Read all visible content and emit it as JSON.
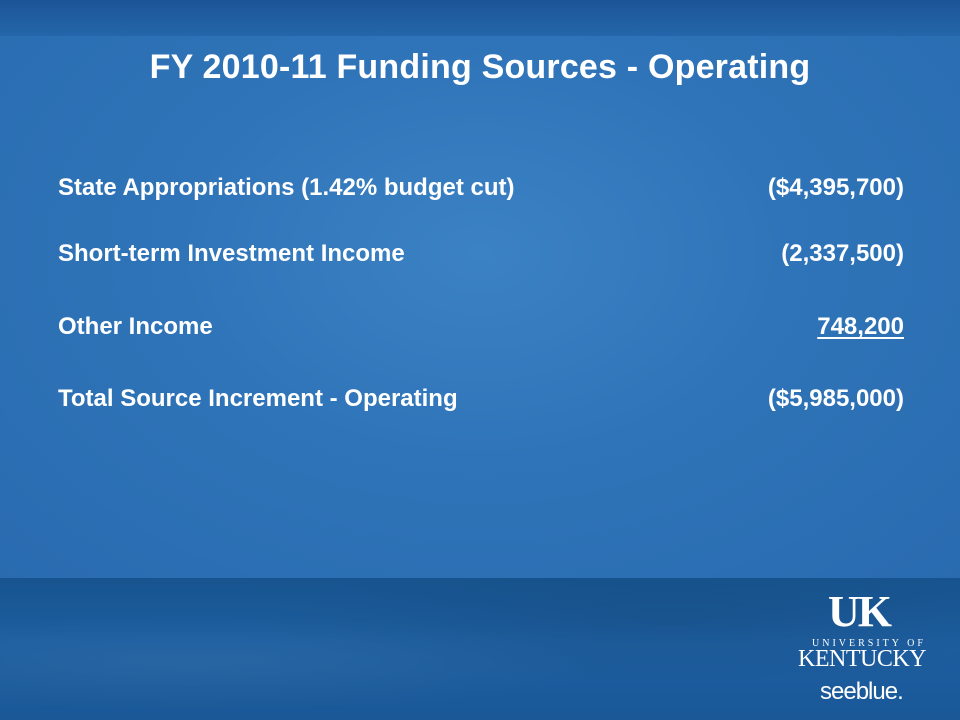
{
  "slide": {
    "title": "FY 2010-11 Funding Sources - Operating",
    "rows": [
      {
        "label": "State Appropriations (1.42% budget cut)",
        "value": "($4,395,700)"
      },
      {
        "label": "Short-term Investment Income",
        "value": "(2,337,500)"
      },
      {
        "label": "Other Income",
        "value": "748,200"
      },
      {
        "label": "Total Source Increment - Operating",
        "value": "($5,985,000)"
      }
    ]
  },
  "logo": {
    "uk": "UK",
    "university": "UNIVERSITY OF",
    "kentucky": "KENTUCKY",
    "seeblue": "seeblue."
  },
  "colors": {
    "background": "#2f74b8",
    "footer": "#1b5a9a",
    "text": "#ffffff"
  }
}
